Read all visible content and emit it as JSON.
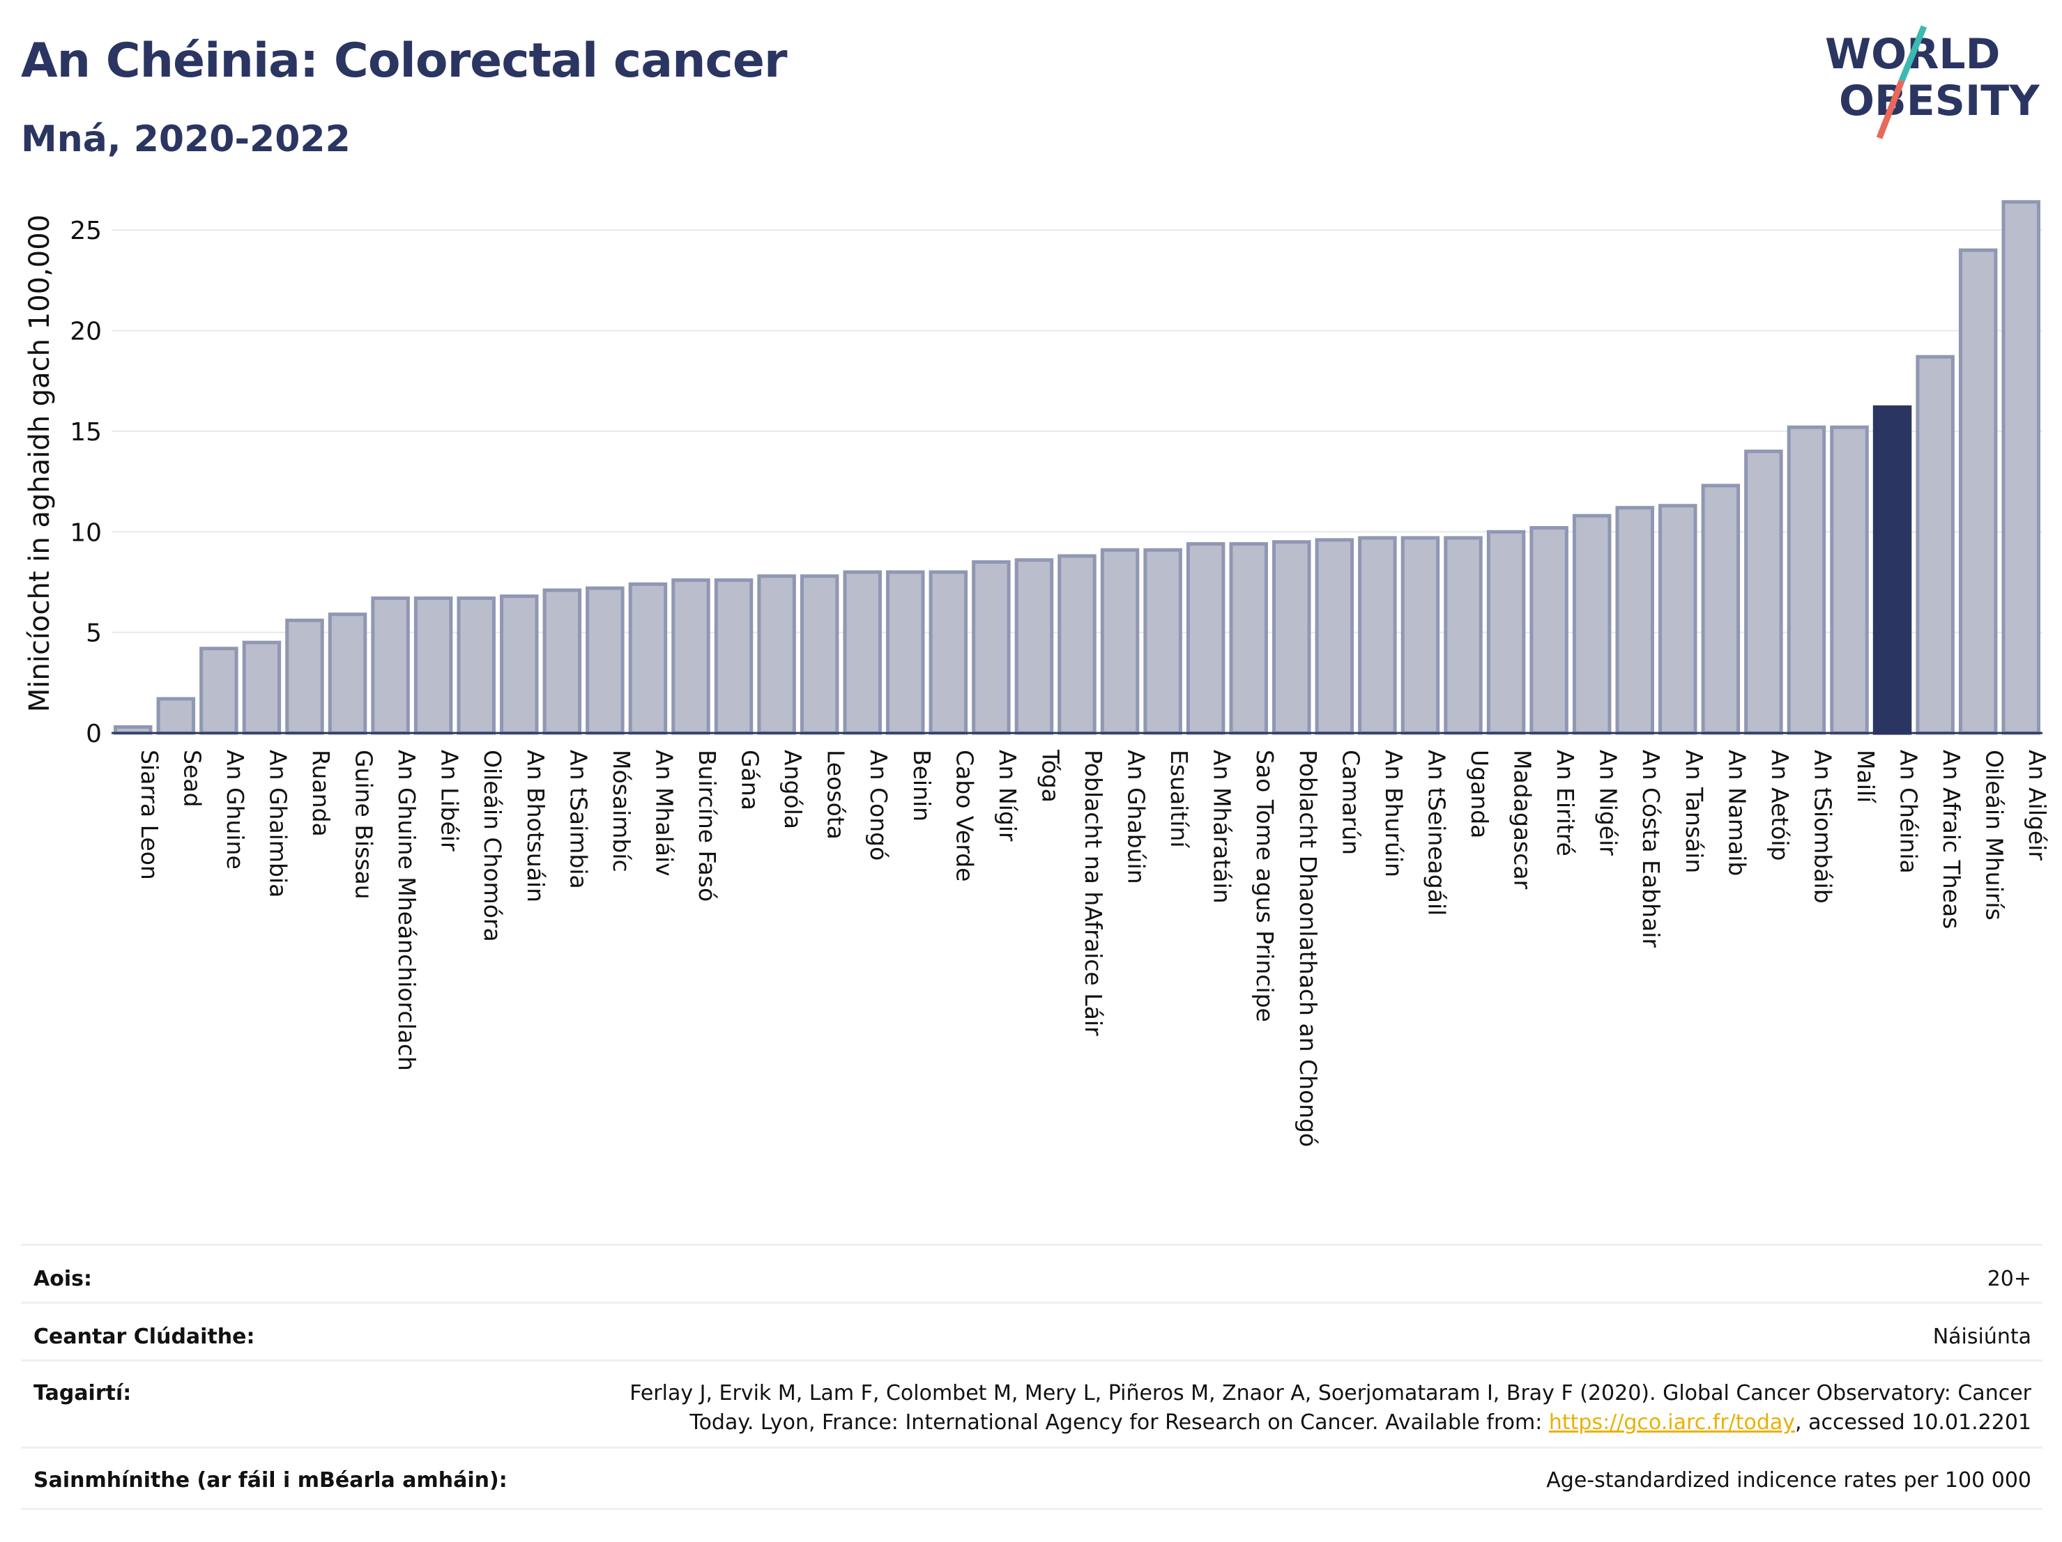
{
  "header": {
    "title": "An Chéinia: Colorectal cancer",
    "subtitle": "Mná, 2020-2022"
  },
  "logo": {
    "line1": "WORLD",
    "line2": "OBESITY"
  },
  "colors": {
    "bar": "#b9bdcc",
    "bar_stroke": "#8f97b3",
    "highlight": "#2b3561",
    "grid": "#e6e8ee",
    "axis": "#2b3561",
    "text": "#111111",
    "logo_teal": "#3cb9b0",
    "logo_red": "#e8685a"
  },
  "chart_data": {
    "type": "bar",
    "ylabel": "Minicíocht in aghaidh gach 100,000",
    "ylim": [
      0,
      27.5
    ],
    "yticks": [
      0,
      5,
      10,
      15,
      20,
      25
    ],
    "grid": true,
    "highlight": "An Chéinia",
    "categories": [
      "Siarra Leon",
      "Sead",
      "An Ghuine",
      "An Ghaimbia",
      "Ruanda",
      "Guine Bissau",
      "An Ghuine Mheánchiorclach",
      "An Libéir",
      "Oileáin Chomóra",
      "An Bhotsuáin",
      "An tSaimbia",
      "Mósaimbíc",
      "An Mhaláiv",
      "Buircíne Fasó",
      "Gána",
      "Angóla",
      "Leosóta",
      "An Congó",
      "Beinin",
      "Cabo Verde",
      "An Nígir",
      "Tóga",
      "Poblacht na hAfraice Láir",
      "An Ghabúin",
      "Esuaitíní",
      "An Mháratáin",
      "Sao Tome agus Principe",
      "Poblacht Dhaonlathach an Chongó",
      "Camarún",
      "An Bhurúin",
      "An tSeineagáil",
      "Uganda",
      "Madagascar",
      "An Eiritré",
      "An Nigéir",
      "An Cósta Eabhair",
      "An Tansáin",
      "An Namaib",
      "An Aetóip",
      "An tSiombáib",
      "Mailí",
      "An Chéinia",
      "An Afraic Theas",
      "Oileáin Mhuirís",
      "An Ailgéir"
    ],
    "values": [
      0.3,
      1.7,
      4.2,
      4.5,
      5.6,
      5.9,
      6.7,
      6.7,
      6.7,
      6.8,
      7.1,
      7.2,
      7.4,
      7.6,
      7.6,
      7.8,
      7.8,
      8.0,
      8.0,
      8.0,
      8.5,
      8.6,
      8.8,
      9.1,
      9.1,
      9.4,
      9.4,
      9.5,
      9.6,
      9.7,
      9.7,
      9.7,
      10.0,
      10.2,
      10.8,
      11.2,
      11.3,
      12.3,
      14.0,
      15.2,
      15.2,
      16.2,
      18.7,
      24.0,
      26.4
    ]
  },
  "meta": {
    "age_label": "Aois:",
    "age_value": "20+",
    "area_label": "Ceantar Clúdaithe:",
    "area_value": "Náisiúnta",
    "ref_label": "Tagairtí:",
    "ref_line1": "Ferlay J, Ervik M, Lam F, Colombet M, Mery L, Piñeros M, Znaor A, Soerjomataram I, Bray F (2020). Global Cancer Observatory: Cancer",
    "ref_line2_pre": "Today. Lyon, France: International Agency for Research on Cancer. Available from: ",
    "ref_link": "https://gco.iarc.fr/today",
    "ref_line2_post": ", accessed 10.01.2201",
    "def_label": "Sainmhínithe (ar fáil i mBéarla amháin):",
    "def_value": "Age-standardized indicence rates per 100 000"
  }
}
